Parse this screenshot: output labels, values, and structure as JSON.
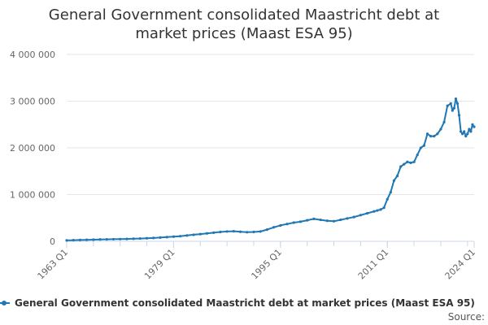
{
  "chart_data": {
    "type": "line",
    "title_line1": "General Government consolidated Maastricht debt at",
    "title_line2": "market prices (Maast ESA 95)",
    "xlabel": "",
    "ylabel": "",
    "x_ticks": [
      "1963 Q1",
      "1979 Q1",
      "1995 Q1",
      "2011 Q1",
      "2024 Q1"
    ],
    "y_ticks": [
      "0",
      "1 000 000",
      "2 000 000",
      "3 000 000",
      "4 000 000"
    ],
    "ylim": [
      0,
      4000000
    ],
    "xlim": [
      1963,
      2024
    ],
    "grid": true,
    "legend_position": "bottom",
    "series": [
      {
        "name": "General Government consolidated Maastricht debt at market prices (Maast ESA 95)",
        "color": "#1f77b4",
        "x": [
          1963,
          1964,
          1965,
          1966,
          1967,
          1968,
          1969,
          1970,
          1971,
          1972,
          1973,
          1974,
          1975,
          1976,
          1977,
          1978,
          1979,
          1980,
          1981,
          1982,
          1983,
          1984,
          1985,
          1986,
          1987,
          1988,
          1989,
          1990,
          1991,
          1992,
          1993,
          1994,
          1995,
          1996,
          1997,
          1998,
          1999,
          2000,
          2001,
          2002,
          2003,
          2004,
          2005,
          2006,
          2007,
          2008,
          2009,
          2009.5,
          2010,
          2010.5,
          2011,
          2011.5,
          2012,
          2012.5,
          2013,
          2013.5,
          2014,
          2014.5,
          2015,
          2015.5,
          2016,
          2016.5,
          2017,
          2017.5,
          2018,
          2018.5,
          2019,
          2019.5,
          2020,
          2020.5,
          2020.75,
          2021,
          2021.25,
          2021.5,
          2021.75,
          2022,
          2022.25,
          2022.5,
          2022.75,
          2023,
          2023.25,
          2023.5,
          2023.75,
          2024
        ],
        "values": [
          20000,
          25000,
          28000,
          32000,
          35000,
          40000,
          42000,
          45000,
          47000,
          50000,
          55000,
          60000,
          65000,
          72000,
          80000,
          90000,
          100000,
          110000,
          125000,
          140000,
          155000,
          170000,
          185000,
          200000,
          210000,
          215000,
          205000,
          195000,
          200000,
          210000,
          250000,
          300000,
          340000,
          370000,
          400000,
          420000,
          450000,
          480000,
          460000,
          440000,
          430000,
          460000,
          490000,
          520000,
          560000,
          600000,
          640000,
          660000,
          680000,
          720000,
          900000,
          1050000,
          1300000,
          1400000,
          1600000,
          1650000,
          1700000,
          1680000,
          1700000,
          1850000,
          2000000,
          2050000,
          2300000,
          2250000,
          2250000,
          2300000,
          2400000,
          2550000,
          2900000,
          2950000,
          2800000,
          2850000,
          3050000,
          2950000,
          2700000,
          2350000,
          2300000,
          2350000,
          2250000,
          2300000,
          2400000,
          2350000,
          2500000,
          2450000
        ]
      }
    ]
  },
  "footer": {
    "source": "Source:"
  }
}
